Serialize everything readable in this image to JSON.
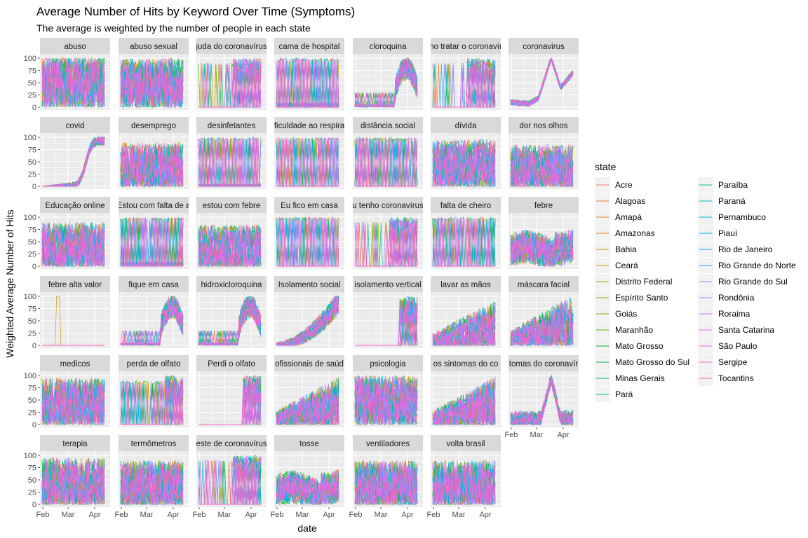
{
  "chart_data": {
    "type": "line",
    "title": "Average Number of Hits by Keyword Over Time (Symptoms)",
    "subtitle": "The average is weighted by the number of people in each state",
    "xlabel": "date",
    "ylabel": "Weighted Average Number of Hits",
    "ylim": [
      0,
      100
    ],
    "y_ticks": [
      "0",
      "25",
      "50",
      "75",
      "100"
    ],
    "x_ticks": [
      "Feb",
      "Mar",
      "Apr"
    ],
    "legend_title": "state",
    "states": [
      {
        "name": "Acre",
        "color": "#F8766D"
      },
      {
        "name": "Alagoas",
        "color": "#F07E4B"
      },
      {
        "name": "Amapá",
        "color": "#E7861B"
      },
      {
        "name": "Amazonas",
        "color": "#DB8E00"
      },
      {
        "name": "Bahia",
        "color": "#CE9700"
      },
      {
        "name": "Ceará",
        "color": "#BF9D00"
      },
      {
        "name": "Distrito Federal",
        "color": "#AEA200"
      },
      {
        "name": "Espírito Santo",
        "color": "#9AA800"
      },
      {
        "name": "Goiás",
        "color": "#80AE00"
      },
      {
        "name": "Maranhão",
        "color": "#5BB300"
      },
      {
        "name": "Mato Grosso",
        "color": "#00B81F"
      },
      {
        "name": "Mato Grosso do Sul",
        "color": "#00BB4E"
      },
      {
        "name": "Minas Gerais",
        "color": "#00BE70"
      },
      {
        "name": "Pará",
        "color": "#00C08E"
      },
      {
        "name": "Paraíba",
        "color": "#00C0A8"
      },
      {
        "name": "Paraná",
        "color": "#00BFC0"
      },
      {
        "name": "Pernambuco",
        "color": "#00BCD6"
      },
      {
        "name": "Piauí",
        "color": "#00B7E9"
      },
      {
        "name": "Rio de Janeiro",
        "color": "#00B0F6"
      },
      {
        "name": "Rio Grande do Norte",
        "color": "#35A2FF"
      },
      {
        "name": "Rio Grande do Sul",
        "color": "#8B93FF"
      },
      {
        "name": "Rondônia",
        "color": "#B385FF"
      },
      {
        "name": "Roraima",
        "color": "#CF78FF"
      },
      {
        "name": "Santa Catarina",
        "color": "#E36EF6"
      },
      {
        "name": "São Paulo",
        "color": "#F066E8"
      },
      {
        "name": "Sergipe",
        "color": "#FA62D4"
      },
      {
        "name": "Tocantins",
        "color": "#FF63B6"
      }
    ],
    "panels": [
      {
        "label": "abuso",
        "pattern": "noisy",
        "level": 50
      },
      {
        "label": "abuso sexual",
        "pattern": "noisy",
        "level": 45
      },
      {
        "label": "juda do coronavírus",
        "pattern": "spikes_late",
        "level": 0
      },
      {
        "label": "cama de hospital",
        "pattern": "spiky",
        "level": 10
      },
      {
        "label": "cloroquina",
        "pattern": "late_rise",
        "level": 10
      },
      {
        "label": "no tratar o coronavír",
        "pattern": "spikes_late",
        "level": 5
      },
      {
        "label": "coronavirus",
        "pattern": "smooth_coronavirus",
        "level": 10
      },
      {
        "label": "covid",
        "pattern": "covid_rise",
        "level": 0
      },
      {
        "label": "desemprego",
        "pattern": "noisy",
        "level": 35
      },
      {
        "label": "desinfetantes",
        "pattern": "spiky",
        "level": 5
      },
      {
        "label": "ficuldade ao respira",
        "pattern": "spiky",
        "level": 0
      },
      {
        "label": "distância social",
        "pattern": "spiky",
        "level": 0
      },
      {
        "label": "dívida",
        "pattern": "noisy",
        "level": 40
      },
      {
        "label": "dor nos olhos",
        "pattern": "noisy",
        "level": 30
      },
      {
        "label": "Educação online",
        "pattern": "noisy",
        "level": 35
      },
      {
        "label": "Estou com falta de a",
        "pattern": "spiky",
        "level": 10
      },
      {
        "label": "estou com febre",
        "pattern": "noisy",
        "level": 30
      },
      {
        "label": "Eu fico em casa",
        "pattern": "spiky",
        "level": 0
      },
      {
        "label": "u tenho coronavírus",
        "pattern": "spikes_late",
        "level": 0
      },
      {
        "label": "falta de cheiro",
        "pattern": "spiky",
        "level": 0
      },
      {
        "label": "febre",
        "pattern": "noisy_mid",
        "level": 30
      },
      {
        "label": "febre alta valor",
        "pattern": "single_spike",
        "level": 0
      },
      {
        "label": "fique em casa",
        "pattern": "late_rise",
        "level": 5
      },
      {
        "label": "hidroxicloroquina",
        "pattern": "late_rise",
        "level": 5
      },
      {
        "label": "Isolamento social",
        "pattern": "gradual_rise",
        "level": 10
      },
      {
        "label": "isolamento vertical",
        "pattern": "late_spike_only",
        "level": 0
      },
      {
        "label": "lavar as mãos",
        "pattern": "noisy_late",
        "level": 20
      },
      {
        "label": "máscara facial",
        "pattern": "noisy_late",
        "level": 30
      },
      {
        "label": "medicos",
        "pattern": "noisy",
        "level": 40
      },
      {
        "label": "perda de olfato",
        "pattern": "spiky_late",
        "level": 0
      },
      {
        "label": "Perdi o olfato",
        "pattern": "late_spike_only",
        "level": 0
      },
      {
        "label": "ofissionais de saúd",
        "pattern": "noisy_late",
        "level": 25
      },
      {
        "label": "psicologia",
        "pattern": "noisy",
        "level": 45
      },
      {
        "label": "os sintomas do co",
        "pattern": "noisy_late",
        "level": 25
      },
      {
        "label": "tomas do coronavír",
        "pattern": "smooth_sintomas",
        "level": 10
      },
      {
        "label": "terapia",
        "pattern": "noisy",
        "level": 40
      },
      {
        "label": "termômetros",
        "pattern": "noisy",
        "level": 35
      },
      {
        "label": "este de coronavírus",
        "pattern": "spikes_late",
        "level": 0
      },
      {
        "label": "tosse",
        "pattern": "noisy_mid",
        "level": 25
      },
      {
        "label": "ventiladores",
        "pattern": "noisy",
        "level": 35
      },
      {
        "label": "volta brasil",
        "pattern": "noisy",
        "level": 35
      }
    ]
  }
}
